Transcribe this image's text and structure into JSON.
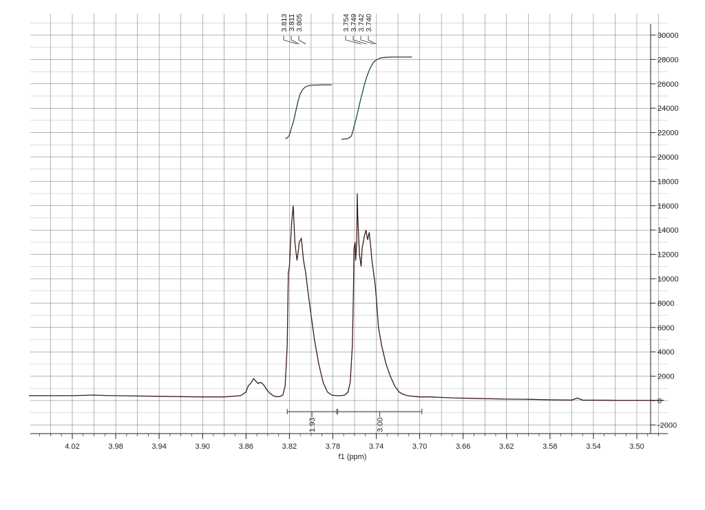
{
  "chart_data": {
    "type": "line",
    "title": "",
    "xlabel": "f1 (ppm)",
    "ylabel": "",
    "x_reversed": true,
    "xlim": [
      4.06,
      3.47
    ],
    "ylim": [
      -2600,
      31000
    ],
    "grid": true,
    "x_ticks": [
      "4.02",
      "3.98",
      "3.94",
      "3.90",
      "3.86",
      "3.82",
      "3.78",
      "3.74",
      "3.70",
      "3.66",
      "3.62",
      "3.58",
      "3.54",
      "3.50"
    ],
    "y_ticks": [
      "30000",
      "28000",
      "26000",
      "24000",
      "22000",
      "20000",
      "18000",
      "16000",
      "14000",
      "12000",
      "10000",
      "8000",
      "6000",
      "4000",
      "2000",
      "0",
      "-2000"
    ],
    "series": [
      {
        "values_x": [
          4.06,
          4.02,
          4.0,
          3.99,
          3.98,
          3.94,
          3.92,
          3.9,
          3.88,
          3.865,
          3.86,
          3.858,
          3.855,
          3.853,
          3.851,
          3.849,
          3.847,
          3.845,
          3.843,
          3.841,
          3.838,
          3.835,
          3.832,
          3.829,
          3.826,
          3.824,
          3.822,
          3.821,
          3.82,
          3.818,
          3.8165,
          3.815,
          3.813,
          3.8115,
          3.811,
          3.809,
          3.807,
          3.805,
          3.803,
          3.8,
          3.797,
          3.793,
          3.789,
          3.785,
          3.781,
          3.777,
          3.773,
          3.769,
          3.766,
          3.764,
          3.762,
          3.761,
          3.7605,
          3.7595,
          3.759,
          3.758,
          3.7575,
          3.757,
          3.7555,
          3.754,
          3.753,
          3.751,
          3.7495,
          3.748,
          3.7465,
          3.745,
          3.744,
          3.7425,
          3.741,
          3.74,
          3.738,
          3.735,
          3.731,
          3.727,
          3.723,
          3.719,
          3.715,
          3.711,
          3.706,
          3.7,
          3.69,
          3.67,
          3.65,
          3.62,
          3.6,
          3.58,
          3.56,
          3.555,
          3.55,
          3.52,
          3.5,
          3.475
        ],
        "values_y": [
          400,
          400,
          450,
          420,
          400,
          350,
          320,
          300,
          300,
          400,
          700,
          1200,
          1500,
          1800,
          1600,
          1400,
          1500,
          1400,
          1200,
          900,
          600,
          400,
          320,
          320,
          450,
          1200,
          4500,
          10500,
          11000,
          14500,
          16000,
          13000,
          11500,
          12500,
          13000,
          13300,
          11500,
          10500,
          9000,
          7000,
          5000,
          3000,
          1500,
          700,
          450,
          400,
          400,
          450,
          700,
          1500,
          4500,
          9000,
          12500,
          13000,
          11500,
          13000,
          17000,
          15000,
          12000,
          11000,
          12500,
          13500,
          14000,
          13200,
          13800,
          12500,
          11500,
          10500,
          9500,
          8500,
          6000,
          4500,
          3000,
          2000,
          1200,
          700,
          500,
          400,
          350,
          300,
          300,
          220,
          180,
          120,
          100,
          60,
          40,
          200,
          40,
          20,
          20,
          20
        ]
      },
      {
        "values_x": [
          3.824,
          3.822,
          3.82,
          3.818,
          3.816,
          3.814,
          3.812,
          3.81,
          3.808,
          3.806,
          3.804,
          3.802,
          3.8,
          3.796,
          3.79,
          3.781
        ],
        "values_y": [
          21500,
          21550,
          21800,
          22400,
          23000,
          23800,
          24600,
          25200,
          25500,
          25700,
          25800,
          25850,
          25880,
          25900,
          25910,
          25910
        ]
      },
      {
        "values_x": [
          3.772,
          3.766,
          3.763,
          3.761,
          3.759,
          3.757,
          3.755,
          3.753,
          3.751,
          3.749,
          3.747,
          3.745,
          3.743,
          3.741,
          3.739,
          3.737,
          3.734,
          3.73,
          3.725,
          3.719,
          3.713,
          3.707
        ],
        "values_y": [
          21450,
          21500,
          21700,
          22300,
          23000,
          23700,
          24500,
          25200,
          25900,
          26500,
          27000,
          27400,
          27700,
          27900,
          28000,
          28100,
          28150,
          28180,
          28200,
          28200,
          28200,
          28200
        ]
      }
    ],
    "peak_labels": [
      {
        "label": "3.813",
        "x": 3.813
      },
      {
        "label": "3.811",
        "x": 3.811
      },
      {
        "label": "3.805",
        "x": 3.805
      },
      {
        "label": "3.754",
        "x": 3.754
      },
      {
        "label": "3.749",
        "x": 3.749
      },
      {
        "label": "3.742",
        "x": 3.742
      },
      {
        "label": "3.740",
        "x": 3.74
      }
    ],
    "integrations": [
      {
        "from": 3.822,
        "to": 3.7765,
        "value": "1.93"
      },
      {
        "from": 3.7755,
        "to": 3.698,
        "value": "3.00"
      }
    ]
  }
}
